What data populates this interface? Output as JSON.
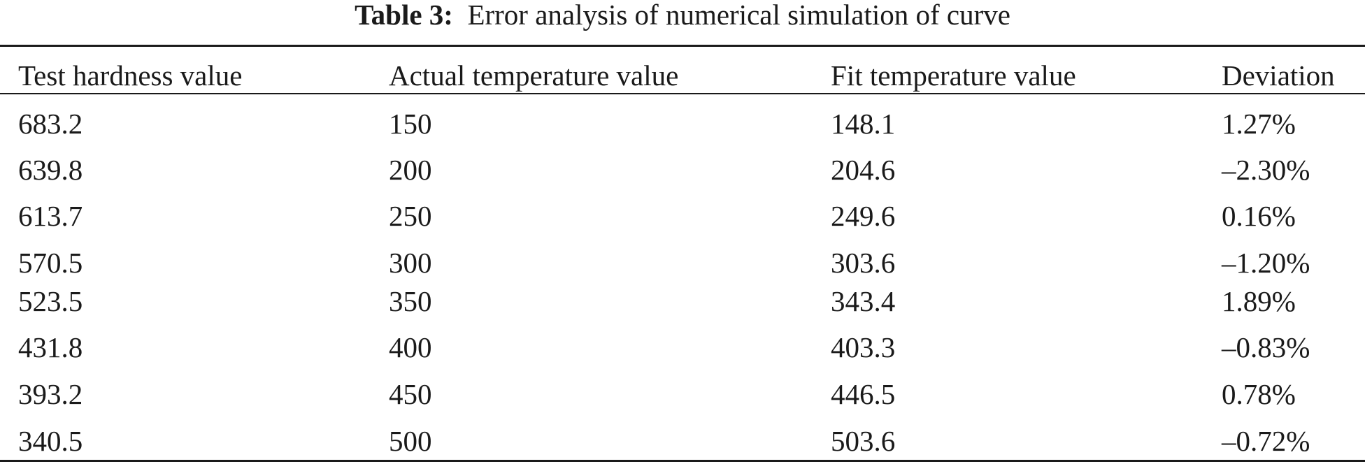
{
  "table": {
    "caption_label": "Table 3:",
    "caption_text": "Error analysis of numerical simulation of curve",
    "columns": [
      "Test hardness value",
      "Actual temperature value",
      "Fit temperature value",
      "Deviation"
    ],
    "rows": [
      [
        "683.2",
        "150",
        "148.1",
        "1.27%"
      ],
      [
        "639.8",
        "200",
        "204.6",
        "–2.30%"
      ],
      [
        "613.7",
        "250",
        "249.6",
        "0.16%"
      ],
      [
        "570.5",
        "300",
        "303.6",
        "–1.20%"
      ],
      [
        "523.5",
        "350",
        "343.4",
        "1.89%"
      ],
      [
        "431.8",
        "400",
        "403.3",
        "–0.83%"
      ],
      [
        "393.2",
        "450",
        "446.5",
        "0.78%"
      ],
      [
        "340.5",
        "500",
        "503.6",
        "–0.72%"
      ]
    ]
  }
}
